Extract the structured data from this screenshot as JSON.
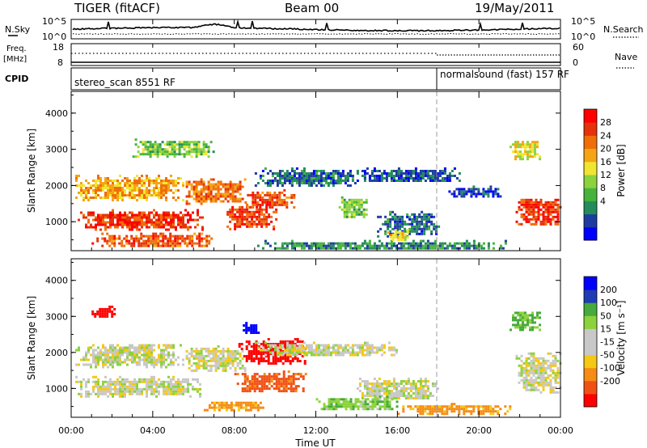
{
  "header": {
    "radar": "TIGER (fitACF)",
    "beam": "Beam 00",
    "date": "19/May/2011"
  },
  "noise_panel": {
    "left_label": "N.Sky",
    "right_label": "N.Search",
    "left_ticks": [
      "10^5",
      "10^0"
    ],
    "right_ticks": [
      "10^5",
      "10^0"
    ]
  },
  "freq_panel": {
    "left_label_1": "Freq.",
    "left_label_2": "[MHz]",
    "left_ticks": [
      "18",
      "8"
    ],
    "right_label": "Nave",
    "right_ticks": [
      "60",
      "0"
    ],
    "cpid_label": "CPID"
  },
  "cpid": [
    {
      "name": "stereo_scan 8551 RF",
      "start_hour": 0
    },
    {
      "name": "normalsound (fast) 157 RF",
      "start_hour": 18
    }
  ],
  "chart_data": [
    {
      "type": "heatmap",
      "title": "Power",
      "xlabel": "",
      "ylabel": "Slant Range [km]",
      "xlim": [
        0,
        24
      ],
      "ylim": [
        200,
        4600
      ],
      "x_tick_labels": [
        "00:00",
        "04:00",
        "08:00",
        "12:00",
        "16:00",
        "20:00",
        "00:00"
      ],
      "y_tick_labels": [
        "1000",
        "2000",
        "3000",
        "4000"
      ],
      "colorbar": {
        "label": "Power [dB]",
        "tick_labels": [
          "28",
          "24",
          "20",
          "16",
          "12",
          "8",
          "4"
        ],
        "range": [
          0,
          30
        ],
        "colors": [
          "#0000ff",
          "#1e3ca0",
          "#238c5a",
          "#46b43c",
          "#8cd23c",
          "#f0e632",
          "#f5a514",
          "#f06e0a",
          "#e6320a",
          "#ff0000"
        ]
      },
      "regions": [
        {
          "t0": 0.2,
          "t1": 6.5,
          "r0": 800,
          "r1": 1350,
          "p": 26
        },
        {
          "t0": 0.2,
          "t1": 5.5,
          "r0": 1600,
          "r1": 2300,
          "p": 20
        },
        {
          "t0": 5.5,
          "t1": 8.5,
          "r0": 1500,
          "r1": 2200,
          "p": 22
        },
        {
          "t0": 7.5,
          "t1": 10.0,
          "r0": 800,
          "r1": 1500,
          "p": 25
        },
        {
          "t0": 8.5,
          "t1": 11.0,
          "r0": 1400,
          "r1": 1900,
          "p": 24
        },
        {
          "t0": 1.0,
          "t1": 7.0,
          "r0": 300,
          "r1": 700,
          "p": 24
        },
        {
          "t0": 3.0,
          "t1": 7.0,
          "r0": 2800,
          "r1": 3300,
          "p": 12
        },
        {
          "t0": 9.0,
          "t1": 14.0,
          "r0": 2000,
          "r1": 2500,
          "p": 6
        },
        {
          "t0": 14.0,
          "t1": 19.0,
          "r0": 2100,
          "r1": 2500,
          "p": 5
        },
        {
          "t0": 13.0,
          "t1": 14.5,
          "r0": 1100,
          "r1": 1700,
          "p": 12
        },
        {
          "t0": 15.0,
          "t1": 18.0,
          "r0": 600,
          "r1": 1300,
          "p": 6
        },
        {
          "t0": 9.0,
          "t1": 21.5,
          "r0": 250,
          "r1": 500,
          "p": 8
        },
        {
          "t0": 18.5,
          "t1": 21.0,
          "r0": 1700,
          "r1": 2000,
          "p": 4
        },
        {
          "t0": 21.8,
          "t1": 24.0,
          "r0": 900,
          "r1": 1700,
          "p": 26
        },
        {
          "t0": 21.5,
          "t1": 23.0,
          "r0": 2700,
          "r1": 3300,
          "p": 16
        },
        {
          "t0": 15.5,
          "t1": 16.5,
          "r0": 500,
          "r1": 800,
          "p": 18
        }
      ]
    },
    {
      "type": "heatmap",
      "title": "Velocity",
      "xlabel": "Time UT",
      "ylabel": "Slant Range [km]",
      "xlim": [
        0,
        24
      ],
      "ylim": [
        200,
        4600
      ],
      "x_tick_labels": [
        "00:00",
        "04:00",
        "08:00",
        "12:00",
        "16:00",
        "20:00",
        "00:00"
      ],
      "y_tick_labels": [
        "1000",
        "2000",
        "3000",
        "4000"
      ],
      "colorbar": {
        "label": "Velocity [m s⁻¹]",
        "tick_labels": [
          "200",
          "100",
          "50",
          "15",
          "-15",
          "-50",
          "-100",
          "-200"
        ],
        "colors": [
          "#ff0000",
          "#f05014",
          "#f58c14",
          "#f5c814",
          "#c8c8c8",
          "#c8c8c8",
          "#8cd23c",
          "#46aa3c",
          "#1e3cb4",
          "#0000ff"
        ]
      },
      "regions": [
        {
          "t0": 0.2,
          "t1": 6.5,
          "r0": 800,
          "r1": 1350,
          "v": 0
        },
        {
          "t0": 0.2,
          "t1": 5.5,
          "r0": 1600,
          "r1": 2300,
          "v": 0
        },
        {
          "t0": 5.5,
          "t1": 8.5,
          "r0": 1500,
          "r1": 2200,
          "v": 0
        },
        {
          "t0": 8.2,
          "t1": 11.5,
          "r0": 1700,
          "r1": 2400,
          "v": -250
        },
        {
          "t0": 8.0,
          "t1": 11.5,
          "r0": 900,
          "r1": 1500,
          "v": -120
        },
        {
          "t0": 9.0,
          "t1": 16.0,
          "r0": 1900,
          "r1": 2300,
          "v": 0
        },
        {
          "t0": 14.0,
          "t1": 18.0,
          "r0": 700,
          "r1": 1300,
          "v": 0
        },
        {
          "t0": 16.0,
          "t1": 21.5,
          "r0": 300,
          "r1": 600,
          "v": -70
        },
        {
          "t0": 21.8,
          "t1": 24.0,
          "r0": 900,
          "r1": 2000,
          "v": 0
        },
        {
          "t0": 8.3,
          "t1": 9.2,
          "r0": 2550,
          "r1": 2850,
          "v": 250
        },
        {
          "t0": 21.5,
          "t1": 23.0,
          "r0": 2600,
          "r1": 3200,
          "v": 60
        },
        {
          "t0": 1.0,
          "t1": 2.2,
          "r0": 3000,
          "r1": 3300,
          "v": -250
        },
        {
          "t0": 6.5,
          "t1": 9.5,
          "r0": 400,
          "r1": 700,
          "v": -70
        },
        {
          "t0": 12.0,
          "t1": 16.0,
          "r0": 400,
          "r1": 800,
          "v": 40
        }
      ]
    }
  ]
}
